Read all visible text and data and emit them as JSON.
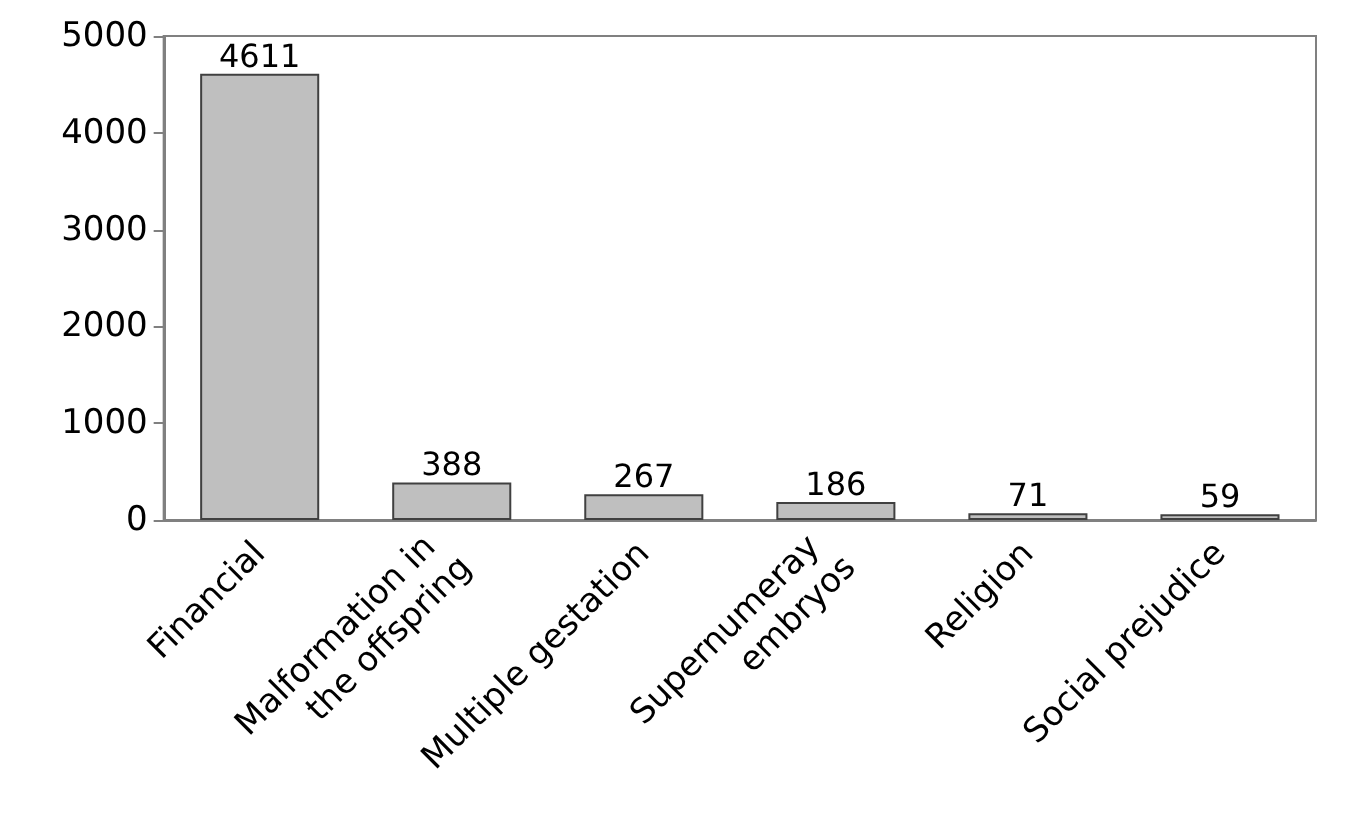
{
  "chart_data": {
    "type": "bar",
    "categories": [
      "Financial",
      "Malformation in the offspring",
      "Multiple gestation",
      "Supernumeray embryos",
      "Religion",
      "Social prejudice"
    ],
    "values": [
      4611,
      388,
      267,
      186,
      71,
      59
    ],
    "color": "#bfbfbf",
    "ylim": [
      0,
      5000
    ],
    "yticks": [
      0,
      1000,
      2000,
      3000,
      4000,
      5000
    ],
    "grid": false,
    "data_labels": true
  }
}
